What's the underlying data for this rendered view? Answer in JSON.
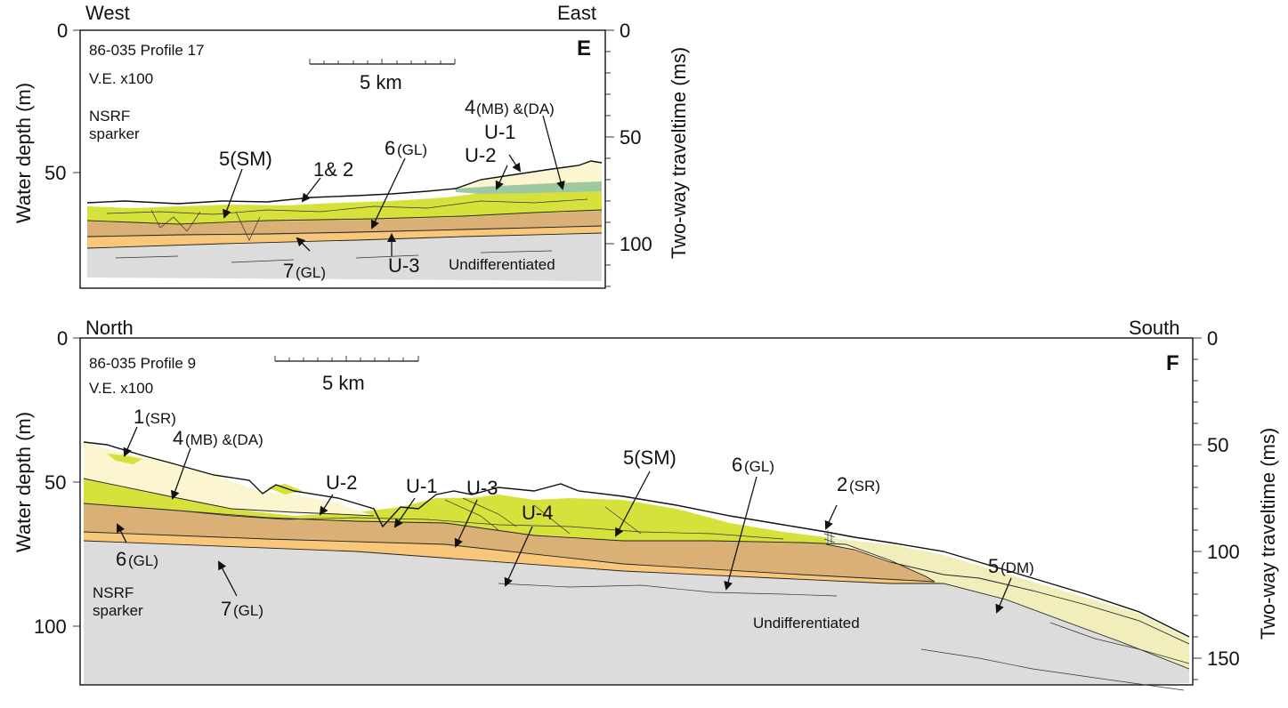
{
  "colors": {
    "undifferentiated": "#dcdcdc",
    "unit7_gl": "#f8c77a",
    "unit6_gl": "#dbb077",
    "unit5_sm": "#d6e13b",
    "unit4_mb_da": "#9ec8a2",
    "unit1_2_sr": "#fbf5d0",
    "unit5_dm": "#f1eebb"
  },
  "panel_e": {
    "letter": "E",
    "left_dir": "West",
    "right_dir": "East",
    "profile": "86-035 Profile 17",
    "ve": "V.E. x100",
    "scale_label": "5 km",
    "source": "NSRF\nsparker",
    "left_axis_title": "Water depth (m)",
    "right_axis_title": "Two-way traveltime (ms)",
    "left_ticks": [
      "0",
      "50"
    ],
    "right_ticks": [
      "0",
      "50",
      "100"
    ],
    "labels": {
      "unit4": "4",
      "unit4_sub": "(MB) &(DA)",
      "u1": "U-1",
      "u2": "U-2",
      "unit5": "5(SM)",
      "unit12": "1& 2",
      "unit6": "6",
      "unit6_sub": "(GL)",
      "unit7": "7",
      "unit7_sub": "(GL)",
      "u3": "U-3",
      "undiff": "Undifferentiated"
    }
  },
  "panel_f": {
    "letter": "F",
    "left_dir": "North",
    "right_dir": "South",
    "profile": "86-035 Profile 9",
    "ve": "V.E. x100",
    "scale_label": "5 km",
    "source": "NSRF\nsparker",
    "left_axis_title": "Water depth (m)",
    "right_axis_title": "Two-way traveltime (ms)",
    "left_ticks": [
      "0",
      "50",
      "100"
    ],
    "right_ticks": [
      "0",
      "50",
      "100",
      "150"
    ],
    "labels": {
      "unit1": "1",
      "unit1_sub": "(SR)",
      "unit4": "4",
      "unit4_sub": "(MB) &(DA)",
      "u2": "U-2",
      "u1": "U-1",
      "u3": "U-3",
      "u4": "U-4",
      "unit5sm": "5(SM)",
      "unit6a": "6",
      "unit6a_sub": "(GL)",
      "unit2": "2",
      "unit2_sub": "(SR)",
      "unit5dm": "5",
      "unit5dm_sub": "(DM)",
      "unit6b": "6",
      "unit6b_sub": "(GL)",
      "unit7": "7",
      "unit7_sub": "(GL)",
      "undiff": "Undifferentiated"
    }
  }
}
